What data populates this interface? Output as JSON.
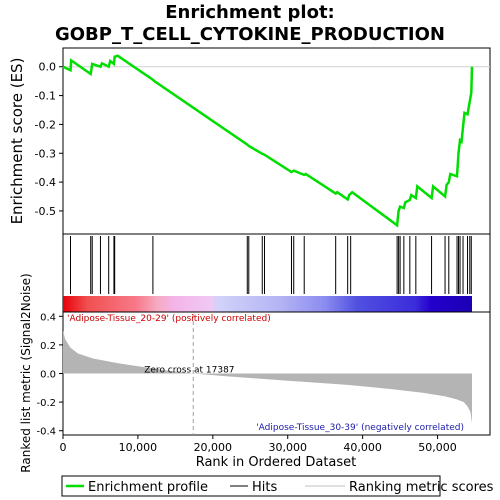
{
  "chart_data": {
    "type": "line",
    "title_line1": "Enrichment plot:",
    "title_line2": "GOBP_T_CELL_CYTOKINE_PRODUCTION",
    "es_panel": {
      "ylabel": "Enrichment score (ES)",
      "ylim": [
        -0.58,
        0.065
      ],
      "yticks": [
        "0.0",
        "-0.1",
        "-0.2",
        "-0.3",
        "-0.4",
        "-0.5"
      ],
      "ytick_values": [
        0.0,
        -0.1,
        -0.2,
        -0.3,
        -0.4,
        -0.5
      ],
      "line_color": "#00dd00",
      "points": [
        [
          0,
          0.0
        ],
        [
          1000,
          -0.012
        ],
        [
          1100,
          0.022
        ],
        [
          3700,
          -0.025
        ],
        [
          3900,
          0.01
        ],
        [
          5000,
          0.0
        ],
        [
          5200,
          0.012
        ],
        [
          6100,
          0.0
        ],
        [
          6300,
          0.02
        ],
        [
          6800,
          0.01
        ],
        [
          6900,
          0.035
        ],
        [
          7300,
          0.038
        ],
        [
          12000,
          -0.045
        ],
        [
          12200,
          -0.05
        ],
        [
          24600,
          -0.27
        ],
        [
          24800,
          -0.275
        ],
        [
          26600,
          -0.302
        ],
        [
          26900,
          -0.305
        ],
        [
          30500,
          -0.365
        ],
        [
          30800,
          -0.36
        ],
        [
          32200,
          -0.375
        ],
        [
          32400,
          -0.372
        ],
        [
          36400,
          -0.44
        ],
        [
          36600,
          -0.435
        ],
        [
          38000,
          -0.46
        ],
        [
          38200,
          -0.445
        ],
        [
          38600,
          -0.435
        ],
        [
          44600,
          -0.55
        ],
        [
          44800,
          -0.5
        ],
        [
          45000,
          -0.485
        ],
        [
          45500,
          -0.49
        ],
        [
          45700,
          -0.47
        ],
        [
          46300,
          -0.462
        ],
        [
          46500,
          -0.445
        ],
        [
          47100,
          -0.455
        ],
        [
          47300,
          -0.415
        ],
        [
          49200,
          -0.455
        ],
        [
          49400,
          -0.415
        ],
        [
          51000,
          -0.45
        ],
        [
          51200,
          -0.41
        ],
        [
          51500,
          -0.4
        ],
        [
          51700,
          -0.372
        ],
        [
          52600,
          -0.38
        ],
        [
          52800,
          -0.3
        ],
        [
          53000,
          -0.255
        ],
        [
          53200,
          -0.26
        ],
        [
          53400,
          -0.21
        ],
        [
          53600,
          -0.16
        ],
        [
          54000,
          -0.165
        ],
        [
          54300,
          -0.12
        ],
        [
          54500,
          -0.09
        ],
        [
          54600,
          0.0
        ]
      ]
    },
    "hits": [
      1000,
      3700,
      3900,
      5000,
      6100,
      6800,
      6900,
      12000,
      24600,
      24800,
      26600,
      26900,
      30500,
      30800,
      32200,
      36400,
      38000,
      38400,
      44600,
      44800,
      45000,
      45500,
      46300,
      47100,
      49200,
      51000,
      51500,
      52600,
      52800,
      53000,
      53400,
      54000,
      54300,
      54500
    ],
    "gradient_bar": {
      "stops": [
        [
          0.0,
          "#e8000a"
        ],
        [
          0.06,
          "#f05050"
        ],
        [
          0.18,
          "#f87a8a"
        ],
        [
          0.23,
          "#f5aac0"
        ],
        [
          0.27,
          "#f4b4e8"
        ],
        [
          0.36,
          "#f0c8f4"
        ],
        [
          0.38,
          "#d2d2fa"
        ],
        [
          0.53,
          "#b4b4f4"
        ],
        [
          0.64,
          "#8c8cf0"
        ],
        [
          0.72,
          "#5050e0"
        ],
        [
          0.86,
          "#3c2cdc"
        ],
        [
          0.9,
          "#2400cc"
        ],
        [
          1.0,
          "#1a00b4"
        ]
      ]
    },
    "rank_panel": {
      "ylabel": "Ranked list metric (Signal2Noise)",
      "ylim": [
        -0.43,
        0.43
      ],
      "yticks": [
        "0.4",
        "0.2",
        "0.0",
        "-0.2",
        "-0.4"
      ],
      "ytick_values": [
        0.4,
        0.2,
        0.0,
        -0.2,
        -0.4
      ],
      "fill_color": "#b4b4b4",
      "profile": [
        [
          0,
          0.3
        ],
        [
          300,
          0.24
        ],
        [
          1000,
          0.18
        ],
        [
          2000,
          0.14
        ],
        [
          4000,
          0.105
        ],
        [
          7000,
          0.075
        ],
        [
          10000,
          0.05
        ],
        [
          14000,
          0.02
        ],
        [
          17387,
          0.0
        ],
        [
          22000,
          -0.02
        ],
        [
          30000,
          -0.05
        ],
        [
          38000,
          -0.08
        ],
        [
          44000,
          -0.11
        ],
        [
          48000,
          -0.135
        ],
        [
          51000,
          -0.16
        ],
        [
          52500,
          -0.18
        ],
        [
          53500,
          -0.2
        ],
        [
          54000,
          -0.23
        ],
        [
          54400,
          -0.27
        ],
        [
          54600,
          -0.35
        ]
      ],
      "zero_cross_label": "Zero cross at 17387",
      "zero_cross_x": 17387,
      "pos_label": "'Adipose-Tissue_20-29' (positively correlated)",
      "neg_label": "'Adipose-Tissue_30-39' (negatively correlated)"
    },
    "x_axis": {
      "label": "Rank in Ordered Dataset",
      "xlim": [
        0,
        57000
      ],
      "data_max": 54600,
      "ticks": [
        "0",
        "10,000",
        "20,000",
        "30,000",
        "40,000",
        "50,000"
      ],
      "tick_values": [
        0,
        10000,
        20000,
        30000,
        40000,
        50000
      ]
    },
    "legend": {
      "items": [
        {
          "label": "Enrichment profile",
          "color": "#00dd00"
        },
        {
          "label": "Hits",
          "color": "#000000"
        },
        {
          "label": "Ranking metric scores",
          "color": "#c0c0c0"
        }
      ]
    }
  }
}
